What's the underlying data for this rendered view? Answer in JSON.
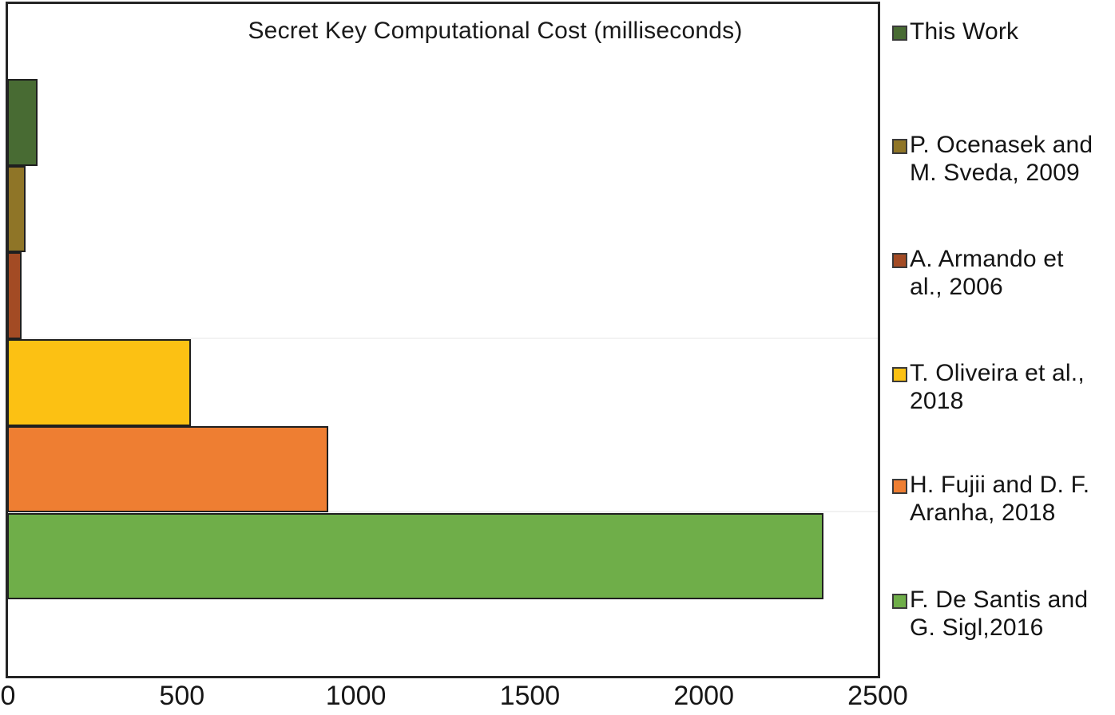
{
  "chart_data": {
    "type": "bar",
    "orientation": "horizontal",
    "title": "Secret Key Computational Cost (milliseconds)",
    "xlabel": "",
    "ylabel": "",
    "xlim": [
      0,
      2500
    ],
    "x_ticks": [
      "0",
      "500",
      "1000",
      "1500",
      "2000",
      "2500"
    ],
    "x_tick_values": [
      0,
      500,
      1000,
      1500,
      2000,
      2500
    ],
    "grid": false,
    "legend_position": "right",
    "series": [
      {
        "name": "This Work",
        "value": 85,
        "color": "#486b33"
      },
      {
        "name": "P. Ocenasek and M. Sveda, 2009",
        "value": 50,
        "color": "#8f7527"
      },
      {
        "name": "A. Armando et al., 2006",
        "value": 40,
        "color": "#a34b24"
      },
      {
        "name": "T. Oliveira et al., 2018",
        "value": 525,
        "color": "#fcc113"
      },
      {
        "name": "H. Fujii and D. F. Aranha, 2018",
        "value": 920,
        "color": "#ee7e32"
      },
      {
        "name": "F. De Santis and G. Sigl,2016",
        "value": 2345,
        "color": "#6fae49"
      }
    ]
  },
  "legend": {
    "items": [
      {
        "lines": [
          "This Work"
        ],
        "color": "#486b33"
      },
      {
        "lines": [
          "P. Ocenasek and",
          "M. Sveda, 2009"
        ],
        "color": "#8f7527"
      },
      {
        "lines": [
          "A. Armando et",
          "al., 2006"
        ],
        "color": "#a34b24"
      },
      {
        "lines": [
          "T. Oliveira et al.,",
          "2018"
        ],
        "color": "#fcc113"
      },
      {
        "lines": [
          "H. Fujii and D. F.",
          "Aranha, 2018"
        ],
        "color": "#ee7e32"
      },
      {
        "lines": [
          "F. De Santis and",
          "G. Sigl,2016"
        ],
        "color": "#6fae49"
      }
    ]
  },
  "colors": {
    "frame": "#242424",
    "bar_border": "#1f1f1f",
    "faint_gridline": "#f2f2f2",
    "text": "#1a1a1a",
    "background": "#ffffff"
  }
}
